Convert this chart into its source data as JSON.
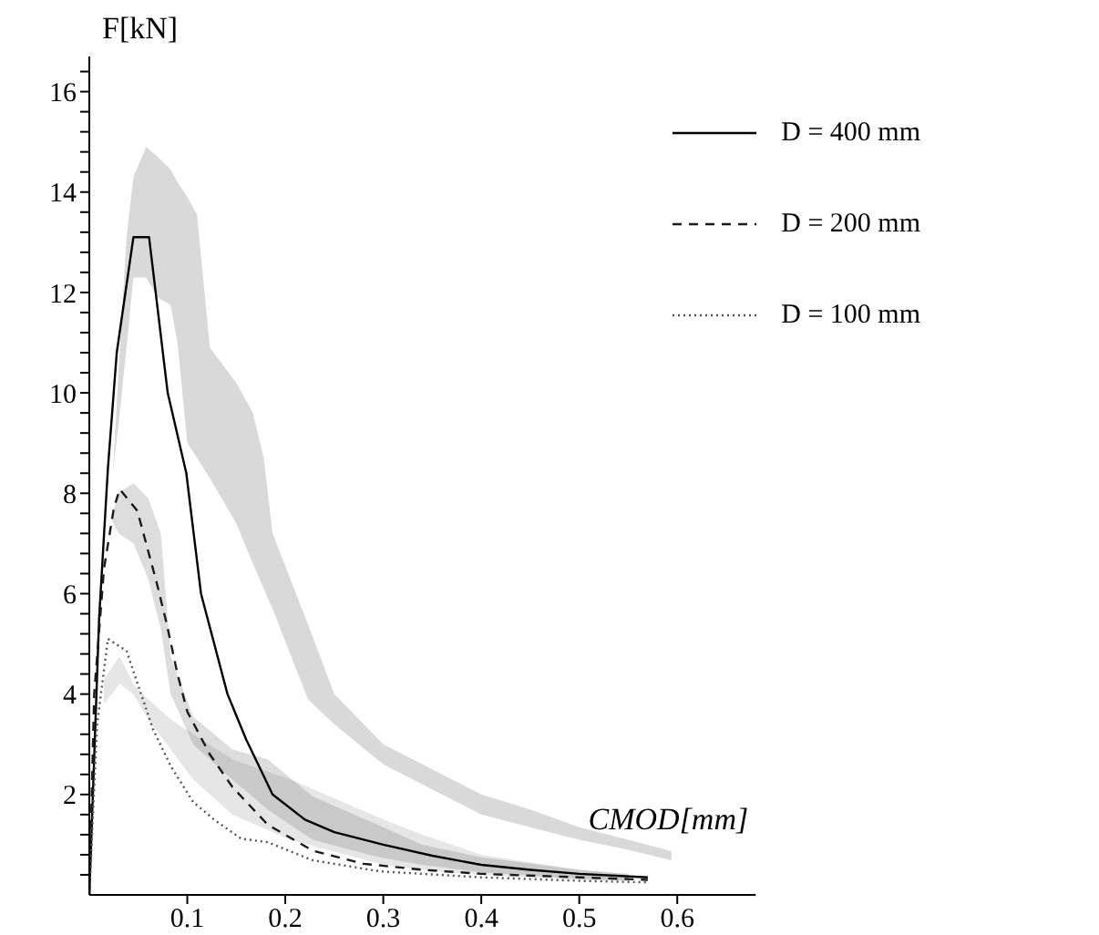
{
  "chart_data": {
    "type": "line",
    "xlabel": "CMOD[mm]",
    "ylabel": "F[kN]",
    "xlim": [
      0,
      0.68
    ],
    "ylim": [
      0,
      16.7
    ],
    "xticks": [
      0.1,
      0.2,
      0.3,
      0.4,
      0.5,
      0.6
    ],
    "yticks": [
      {
        "value": 0.4,
        "label": null
      },
      {
        "value": 0.8,
        "label": null
      },
      {
        "value": 1.2,
        "label": null
      },
      {
        "value": 1.6,
        "label": null
      },
      2,
      {
        "value": 2.4,
        "label": null
      },
      {
        "value": 2.8,
        "label": null
      },
      {
        "value": 3.2,
        "label": null
      },
      {
        "value": 3.6,
        "label": null
      },
      4,
      {
        "value": 4.4,
        "label": null
      },
      {
        "value": 4.8,
        "label": null
      },
      {
        "value": 5.2,
        "label": null
      },
      {
        "value": 5.6,
        "label": null
      },
      6,
      {
        "value": 6.4,
        "label": null
      },
      {
        "value": 6.8,
        "label": null
      },
      {
        "value": 7.2,
        "label": null
      },
      {
        "value": 7.6,
        "label": null
      },
      8,
      {
        "value": 8.4,
        "label": null
      },
      {
        "value": 8.8,
        "label": null
      },
      {
        "value": 9.2,
        "label": null
      },
      {
        "value": 9.6,
        "label": null
      },
      10,
      {
        "value": 10.4,
        "label": null
      },
      {
        "value": 10.8,
        "label": null
      },
      {
        "value": 11.2,
        "label": null
      },
      {
        "value": 11.6,
        "label": null
      },
      12,
      {
        "value": 12.4,
        "label": null
      },
      {
        "value": 12.8,
        "label": null
      },
      {
        "value": 13.2,
        "label": null
      },
      {
        "value": 13.6,
        "label": null
      },
      14,
      {
        "value": 14.4,
        "label": null
      },
      {
        "value": 14.8,
        "label": null
      },
      {
        "value": 15.2,
        "label": null
      },
      {
        "value": 15.6,
        "label": null
      },
      16,
      {
        "value": 16.4,
        "label": null
      }
    ],
    "grid": false,
    "legend": "top right",
    "marker": "none",
    "series": [
      {
        "name": "D = 400 mm",
        "color": "#000000",
        "line_style": "solid",
        "x": [
          0,
          0.01,
          0.019,
          0.024,
          0.028,
          0.03,
          0.038,
          0.045,
          0.058,
          0.061,
          0.07,
          0.08,
          0.083,
          0.09,
          0.099,
          0.1,
          0.11,
          0.114,
          0.123,
          0.141,
          0.15,
          0.16,
          0.167,
          0.178,
          0.187,
          0.22,
          0.223,
          0.25,
          0.3,
          0.35,
          0.4,
          0.45,
          0.5,
          0.55,
          0.57,
          0.594
        ],
        "values": [
          0,
          5.5,
          8.5,
          null,
          10.8,
          null,
          null,
          13.1,
          null,
          13.1,
          null,
          10,
          null,
          null,
          8.4,
          null,
          null,
          6,
          null,
          4,
          null,
          3.1,
          null,
          null,
          2,
          1.5,
          null,
          1.25,
          1.0,
          0.78,
          0.6,
          0.5,
          0.42,
          null,
          0.35,
          null
        ],
        "lower": [
          null,
          null,
          null,
          8.4,
          null,
          9.4,
          10.9,
          12.3,
          12.3,
          null,
          11.9,
          null,
          11.75,
          11.0,
          null,
          9.0,
          8.7,
          null,
          8.3,
          null,
          7.4,
          null,
          6.6,
          6.1,
          5.7,
          null,
          3.9,
          3.4,
          2.6,
          2.1,
          1.6,
          1.35,
          1.1,
          0.9,
          null,
          0.69
        ],
        "upper": [
          null,
          null,
          null,
          8.4,
          null,
          10.5,
          13.1,
          14.3,
          14.9,
          null,
          14.7,
          null,
          14.45,
          14.2,
          null,
          13.9,
          13.55,
          null,
          10.9,
          null,
          10.2,
          null,
          9.6,
          8.7,
          7.2,
          null,
          5.4,
          4.0,
          3.0,
          2.5,
          2.0,
          1.7,
          1.35,
          1.1,
          null,
          0.87
        ]
      },
      {
        "name": "D = 200 mm",
        "color": "#1a1a1a",
        "line_style": "dashed",
        "x": [
          0,
          0.005,
          0.015,
          0.022,
          0.025,
          0.03,
          0.031,
          0.045,
          0.049,
          0.058,
          0.06,
          0.069,
          0.073,
          0.079,
          0.083,
          0.09,
          0.1,
          0.106,
          0.123,
          0.146,
          0.182,
          0.228,
          0.28,
          0.296,
          0.34,
          0.4,
          0.5,
          0.55,
          0.57
        ],
        "values": [
          0,
          4,
          6.5,
          null,
          7.7,
          null,
          8.08,
          null,
          7.65,
          7.0,
          null,
          6.2,
          null,
          5.4,
          null,
          4.4,
          3.65,
          null,
          2.8,
          2.15,
          1.4,
          0.88,
          0.62,
          null,
          0.5,
          0.42,
          0.35,
          null,
          0.3
        ],
        "lower": [
          null,
          null,
          null,
          7.5,
          null,
          7.2,
          null,
          7.0,
          null,
          null,
          6.3,
          null,
          5.3,
          null,
          4.0,
          null,
          null,
          3.0,
          null,
          2.3,
          1.7,
          1.1,
          null,
          0.75,
          0.6,
          0.45,
          0.32,
          0.28,
          null
        ],
        "upper": [
          null,
          null,
          null,
          7.5,
          null,
          8.0,
          null,
          8.2,
          null,
          null,
          7.9,
          null,
          7.2,
          null,
          4.75,
          null,
          null,
          3.55,
          null,
          2.9,
          2.7,
          1.96,
          null,
          1.38,
          1.0,
          0.75,
          0.5,
          0.42,
          null
        ]
      },
      {
        "name": "D = 100 mm",
        "color": "#555555",
        "line_style": "dotted",
        "x": [
          0,
          0.008,
          0.015,
          0.019,
          0.031,
          0.038,
          0.045,
          0.06,
          0.065,
          0.083,
          0.106,
          0.128,
          0.146,
          0.155,
          0.182,
          0.205,
          0.228,
          0.296,
          0.3,
          0.34,
          0.4,
          0.5,
          0.55,
          0.57
        ],
        "values": [
          0,
          3.4,
          null,
          5.1,
          null,
          4.86,
          null,
          null,
          3.3,
          2.57,
          1.85,
          1.49,
          null,
          1.12,
          1.05,
          null,
          0.69,
          0.47,
          null,
          null,
          0.35,
          0.28,
          null,
          0.25
        ],
        "lower": [
          null,
          null,
          3.8,
          null,
          4.2,
          null,
          4.0,
          3.5,
          null,
          2.9,
          2.3,
          null,
          1.6,
          null,
          null,
          1.1,
          null,
          null,
          0.6,
          0.5,
          0.4,
          0.3,
          0.28,
          null
        ],
        "upper": [
          null,
          null,
          4.3,
          null,
          4.75,
          null,
          4.2,
          3.9,
          null,
          3.5,
          3.2,
          null,
          2.7,
          null,
          null,
          2.3,
          null,
          null,
          1.5,
          1.2,
          0.8,
          0.5,
          0.4,
          null
        ]
      }
    ]
  }
}
